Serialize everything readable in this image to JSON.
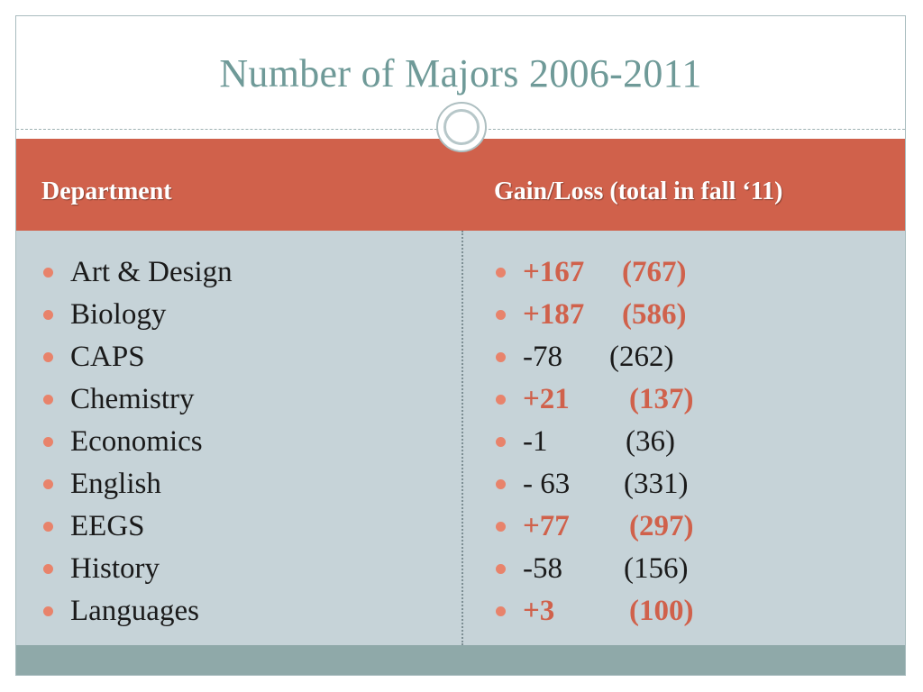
{
  "title": "Number of Majors 2006-2011",
  "header": {
    "col1": "Department",
    "col2": "Gain/Loss  (total in fall ‘11)"
  },
  "colors": {
    "accent": "#d0614b",
    "title": "#6f9a98",
    "body_bg": "#c6d3d8",
    "footer": "#8fa9a9"
  },
  "departments": [
    "Art & Design",
    "Biology",
    "CAPS",
    "Chemistry",
    "Economics",
    "English",
    "EEGS",
    "History",
    "Languages"
  ],
  "changes": [
    {
      "change": "+167",
      "total": "(767)",
      "highlight": true
    },
    {
      "change": "+187",
      "total": "(586)",
      "highlight": true
    },
    {
      "change": "-78",
      "total": "(262)",
      "highlight": false
    },
    {
      "change": "+21",
      "total": "(137)",
      "highlight": true
    },
    {
      "change": "-1",
      "total": "(36)",
      "highlight": false
    },
    {
      "change": "- 63",
      "total": "(331)",
      "highlight": false
    },
    {
      "change": "+77",
      "total": "(297)",
      "highlight": true
    },
    {
      "change": "-58",
      "total": "(156)",
      "highlight": false
    },
    {
      "change": "+3",
      "total": "(100)",
      "highlight": true
    }
  ]
}
